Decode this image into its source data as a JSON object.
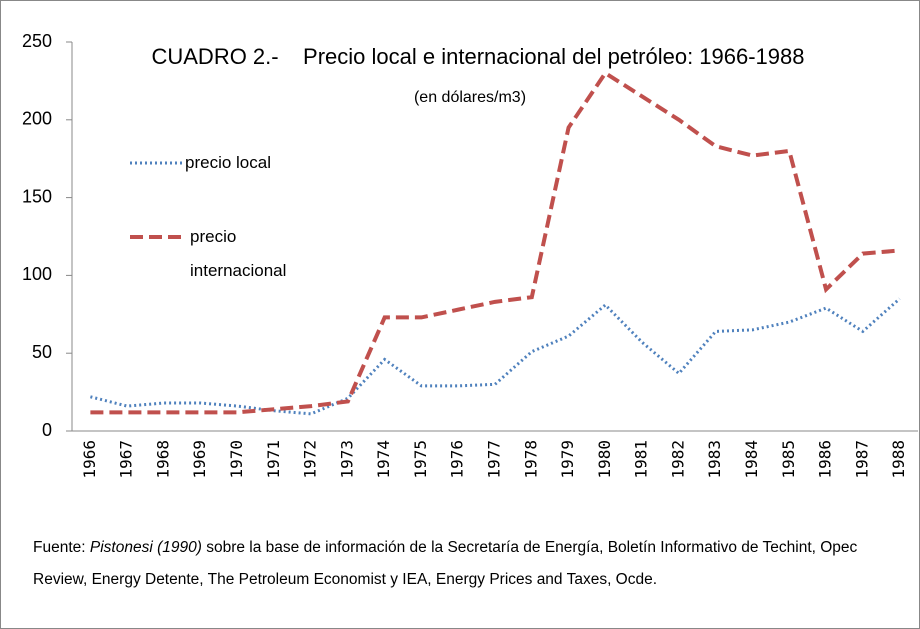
{
  "chart_data": {
    "type": "line",
    "title": "CUADRO 2.-    Precio local e internacional del petróleo: 1966-1988",
    "subtitle": "(en dólares/m3)",
    "categories": [
      "1966",
      "1967",
      "1968",
      "1969",
      "1970",
      "1971",
      "1972",
      "1973",
      "1974",
      "1975",
      "1976",
      "1977",
      "1978",
      "1979",
      "1980",
      "1981",
      "1982",
      "1983",
      "1984",
      "1985",
      "1986",
      "1987",
      "1988"
    ],
    "series": [
      {
        "name": "precio local",
        "color": "#4f81bd",
        "dash": "dotted",
        "values": [
          22,
          16,
          18,
          18,
          16,
          13,
          11,
          21,
          46,
          29,
          29,
          30,
          51,
          61,
          81,
          57,
          37,
          64,
          65,
          70,
          79,
          64,
          85
        ]
      },
      {
        "name": "precio internacional",
        "color": "#c0504d",
        "dash": "dashed",
        "values": [
          12,
          12,
          12,
          12,
          12,
          14,
          16,
          19,
          73,
          73,
          78,
          83,
          86,
          195,
          230,
          215,
          200,
          183,
          177,
          180,
          91,
          114,
          116
        ]
      }
    ],
    "ylim": [
      0,
      250
    ],
    "yticks": [
      0,
      50,
      100,
      150,
      200,
      250
    ],
    "grid": false,
    "source": {
      "prefix": "Fuente:",
      "author": "Pistonesi (1990)",
      "text": "sobre la base de información de la Secretaría de Energía, Boletín Informativo de Techint, Opec Review, Energy Detente, The Petroleum Economist y IEA, Energy Prices and Taxes, Ocde."
    }
  }
}
